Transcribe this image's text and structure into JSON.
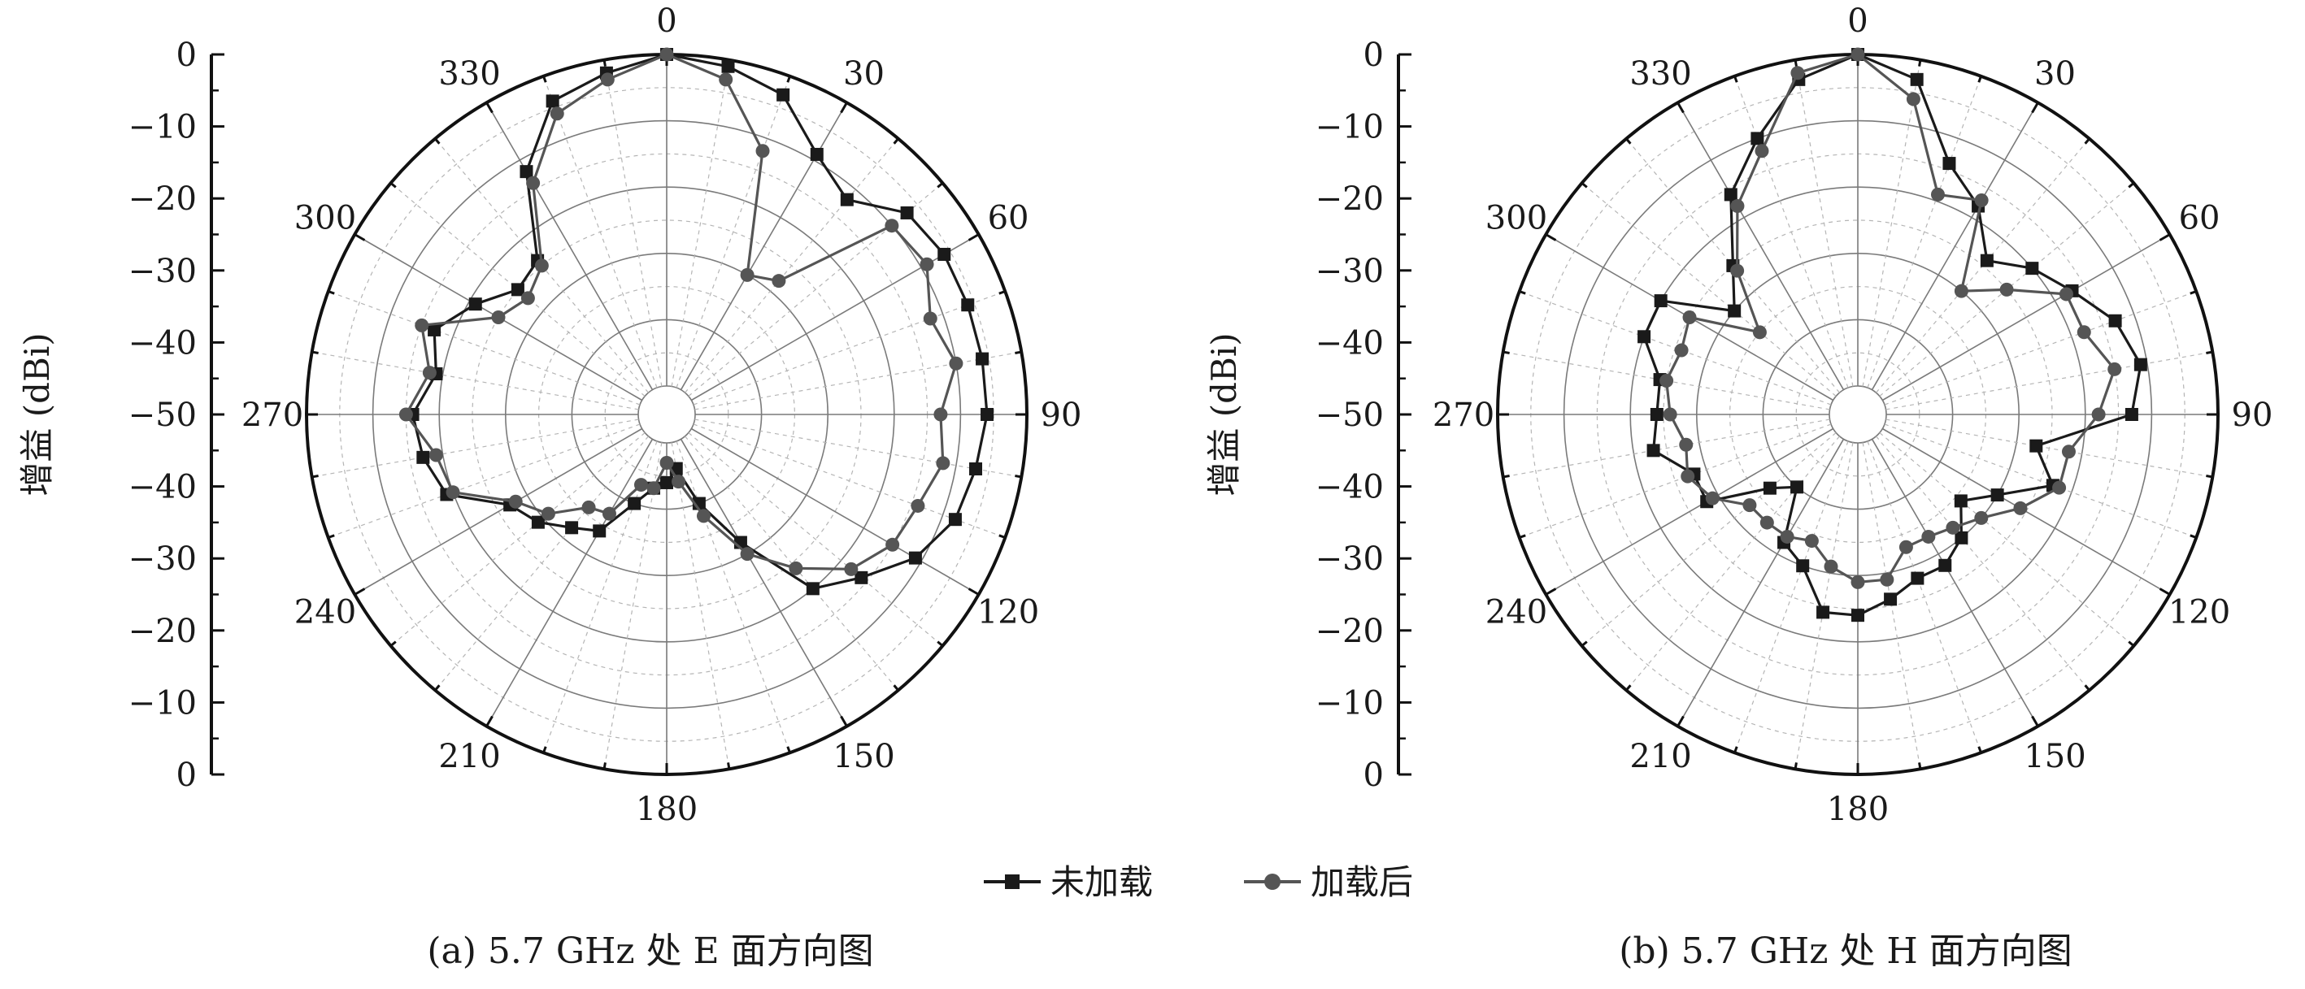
{
  "chart_data": [
    {
      "type": "polar-line",
      "caption": "(a) 5.7 GHz 处 E 面方向图",
      "ylabel": "增益 (dBi)",
      "radial_range": [
        -50,
        0
      ],
      "radial_ticks": [
        0,
        -10,
        -20,
        -30,
        -40,
        -50,
        -40,
        -30,
        -20,
        -10,
        0
      ],
      "angle_ticks": [
        0,
        30,
        60,
        90,
        120,
        150,
        180,
        210,
        240,
        270,
        300,
        330
      ],
      "grid": true,
      "series": [
        {
          "name": "未加载",
          "color": "#1a1a1a",
          "marker": "square",
          "angles": [
            0,
            10,
            20,
            30,
            40,
            50,
            60,
            70,
            80,
            90,
            100,
            110,
            120,
            130,
            140,
            150,
            160,
            170,
            180,
            190,
            200,
            210,
            220,
            230,
            240,
            250,
            260,
            270,
            280,
            290,
            300,
            310,
            320,
            330,
            340,
            350
          ],
          "values": [
            0,
            -1,
            -3,
            -9,
            -12,
            -7,
            -6,
            -6,
            -6,
            -6,
            -7,
            -8,
            -11,
            -16,
            -20,
            -32,
            -40,
            -46,
            -44,
            -43,
            -40,
            -34,
            -32,
            -29,
            -27,
            -19,
            -17,
            -16,
            -19,
            -17,
            -21,
            -25,
            -24,
            -12,
            -4,
            -2
          ]
        },
        {
          "name": "加载后",
          "color": "#555555",
          "marker": "circle",
          "angles": [
            0,
            10,
            20,
            30,
            40,
            50,
            60,
            70,
            80,
            90,
            100,
            110,
            120,
            130,
            140,
            150,
            160,
            170,
            180,
            190,
            200,
            210,
            220,
            230,
            240,
            250,
            260,
            270,
            280,
            290,
            300,
            310,
            320,
            330,
            340,
            350
          ],
          "values": [
            0,
            -3,
            -12,
            -30,
            -28,
            -10,
            -9,
            -12,
            -10,
            -13,
            -12,
            -14,
            -15,
            -18,
            -24,
            -30,
            -38,
            -44,
            -47,
            -43,
            -43,
            -37,
            -36,
            -31,
            -28,
            -20,
            -19,
            -15,
            -18,
            -15,
            -25,
            -27,
            -25,
            -14,
            -6,
            -3
          ]
        }
      ]
    },
    {
      "type": "polar-line",
      "caption": "(b) 5.7 GHz 处 H 面方向图",
      "ylabel": "增益 (dBi)",
      "radial_range": [
        -50,
        0
      ],
      "radial_ticks": [
        0,
        -10,
        -20,
        -30,
        -40,
        -50,
        -40,
        -30,
        -20,
        -10,
        0
      ],
      "angle_ticks": [
        0,
        30,
        60,
        90,
        120,
        150,
        180,
        210,
        240,
        270,
        300,
        330
      ],
      "grid": true,
      "series": [
        {
          "name": "未加载",
          "color": "#1a1a1a",
          "marker": "square",
          "angles": [
            0,
            10,
            20,
            30,
            40,
            50,
            60,
            70,
            80,
            90,
            100,
            110,
            120,
            130,
            140,
            150,
            160,
            170,
            180,
            190,
            200,
            210,
            220,
            230,
            240,
            250,
            260,
            270,
            280,
            290,
            300,
            310,
            320,
            330,
            340,
            350
          ],
          "values": [
            0,
            -3,
            -14,
            -18,
            -24,
            -20,
            -17,
            -13,
            -11,
            -13,
            -27,
            -23,
            -30,
            -34,
            -30,
            -28,
            -28,
            -26,
            -24,
            -24,
            -30,
            -32,
            -40,
            -37,
            -28,
            -28,
            -23,
            -24,
            -24,
            -20,
            -20,
            -30,
            -25,
            -16,
            -10,
            -3
          ]
        },
        {
          "name": "加载后",
          "color": "#555555",
          "marker": "circle",
          "angles": [
            0,
            10,
            20,
            30,
            40,
            50,
            60,
            70,
            80,
            90,
            100,
            110,
            120,
            130,
            140,
            150,
            160,
            170,
            180,
            190,
            200,
            210,
            220,
            230,
            240,
            250,
            260,
            270,
            280,
            290,
            300,
            310,
            320,
            330,
            340,
            350
          ],
          "values": [
            0,
            -6,
            -19,
            -17,
            -30,
            -25,
            -18,
            -18,
            -15,
            -18,
            -22,
            -22,
            -26,
            -30,
            -32,
            -33,
            -33,
            -29,
            -29,
            -31,
            -34,
            -33,
            -33,
            -33,
            -29,
            -27,
            -28,
            -26,
            -25,
            -26,
            -25,
            -35,
            -26,
            -18,
            -12,
            -2
          ]
        }
      ]
    }
  ],
  "legend": {
    "items": [
      {
        "label": "未加载",
        "marker": "square",
        "color": "#1a1a1a"
      },
      {
        "label": "加载后",
        "marker": "circle",
        "color": "#555555"
      }
    ]
  }
}
